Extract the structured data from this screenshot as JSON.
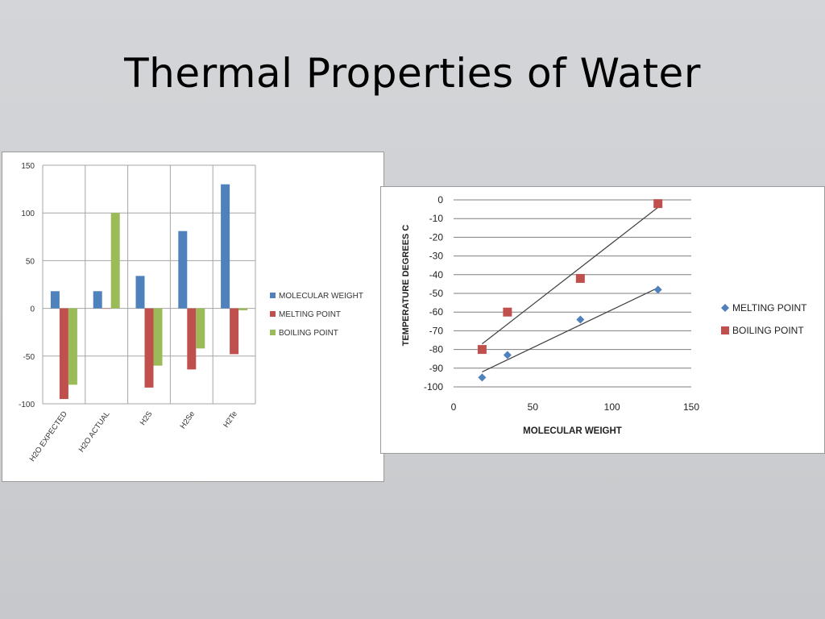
{
  "slide": {
    "title": "Thermal Properties of Water"
  },
  "colors": {
    "molecular_weight": "#4f81bd",
    "melting_point": "#c0504d",
    "boiling_point": "#9bbb59",
    "scatter_melting": "#4f81bd",
    "scatter_boiling": "#c0504d",
    "grid": "#a6a6a6",
    "trend": "#404040"
  },
  "chart_data": [
    {
      "type": "bar",
      "title": "",
      "xlabel": "",
      "ylabel": "",
      "categories": [
        "H2O EXPECTED",
        "H2O ACTUAL",
        "H2S",
        "H2Se",
        "H2Te"
      ],
      "series": [
        {
          "name": "MOLECULAR WEIGHT",
          "values": [
            18,
            18,
            34,
            81,
            130
          ]
        },
        {
          "name": "MELTING POINT",
          "values": [
            -95,
            0,
            -83,
            -64,
            -48
          ]
        },
        {
          "name": "BOILING POINT",
          "values": [
            -80,
            100,
            -60,
            -42,
            -2
          ]
        }
      ],
      "ylim": [
        -100,
        150
      ],
      "yticks": [
        150,
        100,
        50,
        0,
        -50,
        -100
      ],
      "grid": true,
      "legend": "right"
    },
    {
      "type": "scatter",
      "title": "",
      "xlabel": "MOLECULAR WEIGHT",
      "ylabel": "TEMPERATURE  DEGREES  C",
      "xlim": [
        0,
        150
      ],
      "ylim": [
        -100,
        0
      ],
      "xticks": [
        0,
        50,
        100,
        150
      ],
      "yticks": [
        0,
        -10,
        -20,
        -30,
        -40,
        -50,
        -60,
        -70,
        -80,
        -90,
        -100
      ],
      "series": [
        {
          "name": "MELTING POINT",
          "marker": "diamond",
          "points": [
            [
              18,
              -95
            ],
            [
              34,
              -83
            ],
            [
              80,
              -64
            ],
            [
              129,
              -48
            ]
          ],
          "trendline": [
            [
              18,
              -92
            ],
            [
              129,
              -47
            ]
          ]
        },
        {
          "name": "BOILING POINT",
          "marker": "square",
          "points": [
            [
              18,
              -80
            ],
            [
              34,
              -60
            ],
            [
              80,
              -42
            ],
            [
              129,
              -2
            ]
          ],
          "trendline": [
            [
              18,
              -77
            ],
            [
              129,
              -4
            ]
          ]
        }
      ],
      "grid": true,
      "legend": "right"
    }
  ]
}
